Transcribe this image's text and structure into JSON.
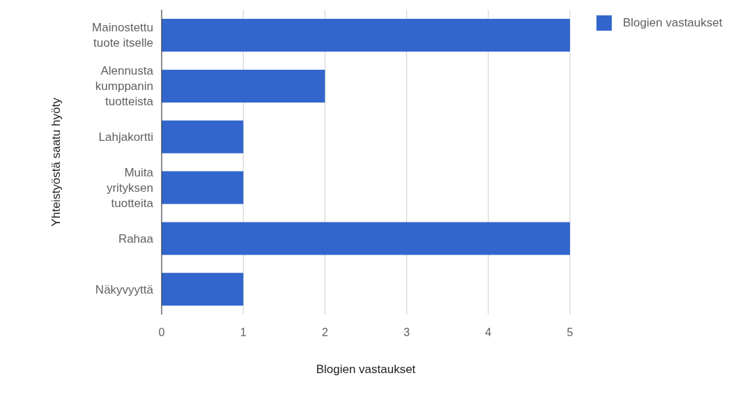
{
  "chart_data": {
    "type": "bar",
    "orientation": "horizontal",
    "xlabel": "Blogien vastaukset",
    "ylabel": "Yhteistyöstä saatu hyöty",
    "categories": [
      "Mainostettu tuote itselle",
      "Alennusta kumppanin tuotteista",
      "Lahjakortti",
      "Muita yrityksen tuotteita",
      "Rahaa",
      "Näkyvyyttä"
    ],
    "series": [
      {
        "name": "Blogien vastaukset",
        "color": "#3366cc",
        "values": [
          5,
          2,
          1,
          1,
          5,
          1
        ]
      }
    ],
    "xlim": [
      0,
      5
    ],
    "xticks": [
      0,
      1,
      2,
      3,
      4,
      5
    ],
    "grid": "x",
    "legend": "top right"
  }
}
